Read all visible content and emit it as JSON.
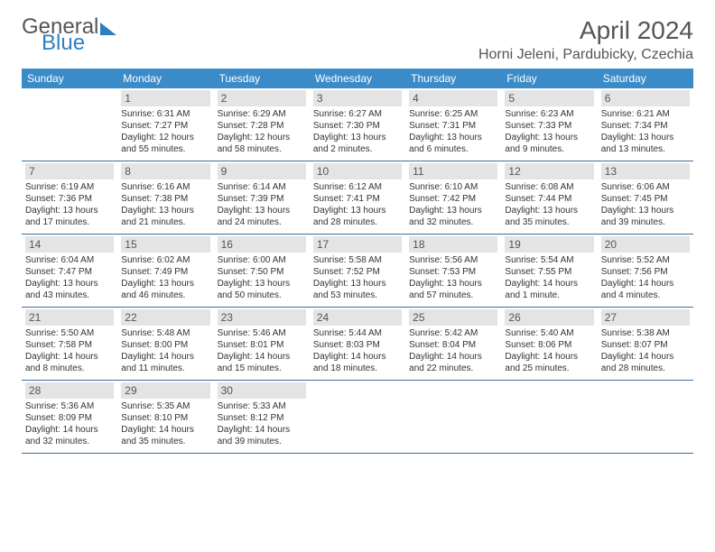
{
  "logo": {
    "text1": "General",
    "text2": "Blue"
  },
  "title": "April 2024",
  "location": "Horni Jeleni, Pardubicky, Czechia",
  "colors": {
    "headerBar": "#3b8bc8",
    "dayNumBar": "#e4e4e4",
    "borderLine": "#3b6fa0",
    "logoBlue": "#2e7fc0",
    "textGray": "#555555"
  },
  "dayNames": [
    "Sunday",
    "Monday",
    "Tuesday",
    "Wednesday",
    "Thursday",
    "Friday",
    "Saturday"
  ],
  "weeks": [
    [
      null,
      {
        "n": "1",
        "sr": "Sunrise: 6:31 AM",
        "ss": "Sunset: 7:27 PM",
        "dl": "Daylight: 12 hours and 55 minutes."
      },
      {
        "n": "2",
        "sr": "Sunrise: 6:29 AM",
        "ss": "Sunset: 7:28 PM",
        "dl": "Daylight: 12 hours and 58 minutes."
      },
      {
        "n": "3",
        "sr": "Sunrise: 6:27 AM",
        "ss": "Sunset: 7:30 PM",
        "dl": "Daylight: 13 hours and 2 minutes."
      },
      {
        "n": "4",
        "sr": "Sunrise: 6:25 AM",
        "ss": "Sunset: 7:31 PM",
        "dl": "Daylight: 13 hours and 6 minutes."
      },
      {
        "n": "5",
        "sr": "Sunrise: 6:23 AM",
        "ss": "Sunset: 7:33 PM",
        "dl": "Daylight: 13 hours and 9 minutes."
      },
      {
        "n": "6",
        "sr": "Sunrise: 6:21 AM",
        "ss": "Sunset: 7:34 PM",
        "dl": "Daylight: 13 hours and 13 minutes."
      }
    ],
    [
      {
        "n": "7",
        "sr": "Sunrise: 6:19 AM",
        "ss": "Sunset: 7:36 PM",
        "dl": "Daylight: 13 hours and 17 minutes."
      },
      {
        "n": "8",
        "sr": "Sunrise: 6:16 AM",
        "ss": "Sunset: 7:38 PM",
        "dl": "Daylight: 13 hours and 21 minutes."
      },
      {
        "n": "9",
        "sr": "Sunrise: 6:14 AM",
        "ss": "Sunset: 7:39 PM",
        "dl": "Daylight: 13 hours and 24 minutes."
      },
      {
        "n": "10",
        "sr": "Sunrise: 6:12 AM",
        "ss": "Sunset: 7:41 PM",
        "dl": "Daylight: 13 hours and 28 minutes."
      },
      {
        "n": "11",
        "sr": "Sunrise: 6:10 AM",
        "ss": "Sunset: 7:42 PM",
        "dl": "Daylight: 13 hours and 32 minutes."
      },
      {
        "n": "12",
        "sr": "Sunrise: 6:08 AM",
        "ss": "Sunset: 7:44 PM",
        "dl": "Daylight: 13 hours and 35 minutes."
      },
      {
        "n": "13",
        "sr": "Sunrise: 6:06 AM",
        "ss": "Sunset: 7:45 PM",
        "dl": "Daylight: 13 hours and 39 minutes."
      }
    ],
    [
      {
        "n": "14",
        "sr": "Sunrise: 6:04 AM",
        "ss": "Sunset: 7:47 PM",
        "dl": "Daylight: 13 hours and 43 minutes."
      },
      {
        "n": "15",
        "sr": "Sunrise: 6:02 AM",
        "ss": "Sunset: 7:49 PM",
        "dl": "Daylight: 13 hours and 46 minutes."
      },
      {
        "n": "16",
        "sr": "Sunrise: 6:00 AM",
        "ss": "Sunset: 7:50 PM",
        "dl": "Daylight: 13 hours and 50 minutes."
      },
      {
        "n": "17",
        "sr": "Sunrise: 5:58 AM",
        "ss": "Sunset: 7:52 PM",
        "dl": "Daylight: 13 hours and 53 minutes."
      },
      {
        "n": "18",
        "sr": "Sunrise: 5:56 AM",
        "ss": "Sunset: 7:53 PM",
        "dl": "Daylight: 13 hours and 57 minutes."
      },
      {
        "n": "19",
        "sr": "Sunrise: 5:54 AM",
        "ss": "Sunset: 7:55 PM",
        "dl": "Daylight: 14 hours and 1 minute."
      },
      {
        "n": "20",
        "sr": "Sunrise: 5:52 AM",
        "ss": "Sunset: 7:56 PM",
        "dl": "Daylight: 14 hours and 4 minutes."
      }
    ],
    [
      {
        "n": "21",
        "sr": "Sunrise: 5:50 AM",
        "ss": "Sunset: 7:58 PM",
        "dl": "Daylight: 14 hours and 8 minutes."
      },
      {
        "n": "22",
        "sr": "Sunrise: 5:48 AM",
        "ss": "Sunset: 8:00 PM",
        "dl": "Daylight: 14 hours and 11 minutes."
      },
      {
        "n": "23",
        "sr": "Sunrise: 5:46 AM",
        "ss": "Sunset: 8:01 PM",
        "dl": "Daylight: 14 hours and 15 minutes."
      },
      {
        "n": "24",
        "sr": "Sunrise: 5:44 AM",
        "ss": "Sunset: 8:03 PM",
        "dl": "Daylight: 14 hours and 18 minutes."
      },
      {
        "n": "25",
        "sr": "Sunrise: 5:42 AM",
        "ss": "Sunset: 8:04 PM",
        "dl": "Daylight: 14 hours and 22 minutes."
      },
      {
        "n": "26",
        "sr": "Sunrise: 5:40 AM",
        "ss": "Sunset: 8:06 PM",
        "dl": "Daylight: 14 hours and 25 minutes."
      },
      {
        "n": "27",
        "sr": "Sunrise: 5:38 AM",
        "ss": "Sunset: 8:07 PM",
        "dl": "Daylight: 14 hours and 28 minutes."
      }
    ],
    [
      {
        "n": "28",
        "sr": "Sunrise: 5:36 AM",
        "ss": "Sunset: 8:09 PM",
        "dl": "Daylight: 14 hours and 32 minutes."
      },
      {
        "n": "29",
        "sr": "Sunrise: 5:35 AM",
        "ss": "Sunset: 8:10 PM",
        "dl": "Daylight: 14 hours and 35 minutes."
      },
      {
        "n": "30",
        "sr": "Sunrise: 5:33 AM",
        "ss": "Sunset: 8:12 PM",
        "dl": "Daylight: 14 hours and 39 minutes."
      },
      null,
      null,
      null,
      null
    ]
  ]
}
